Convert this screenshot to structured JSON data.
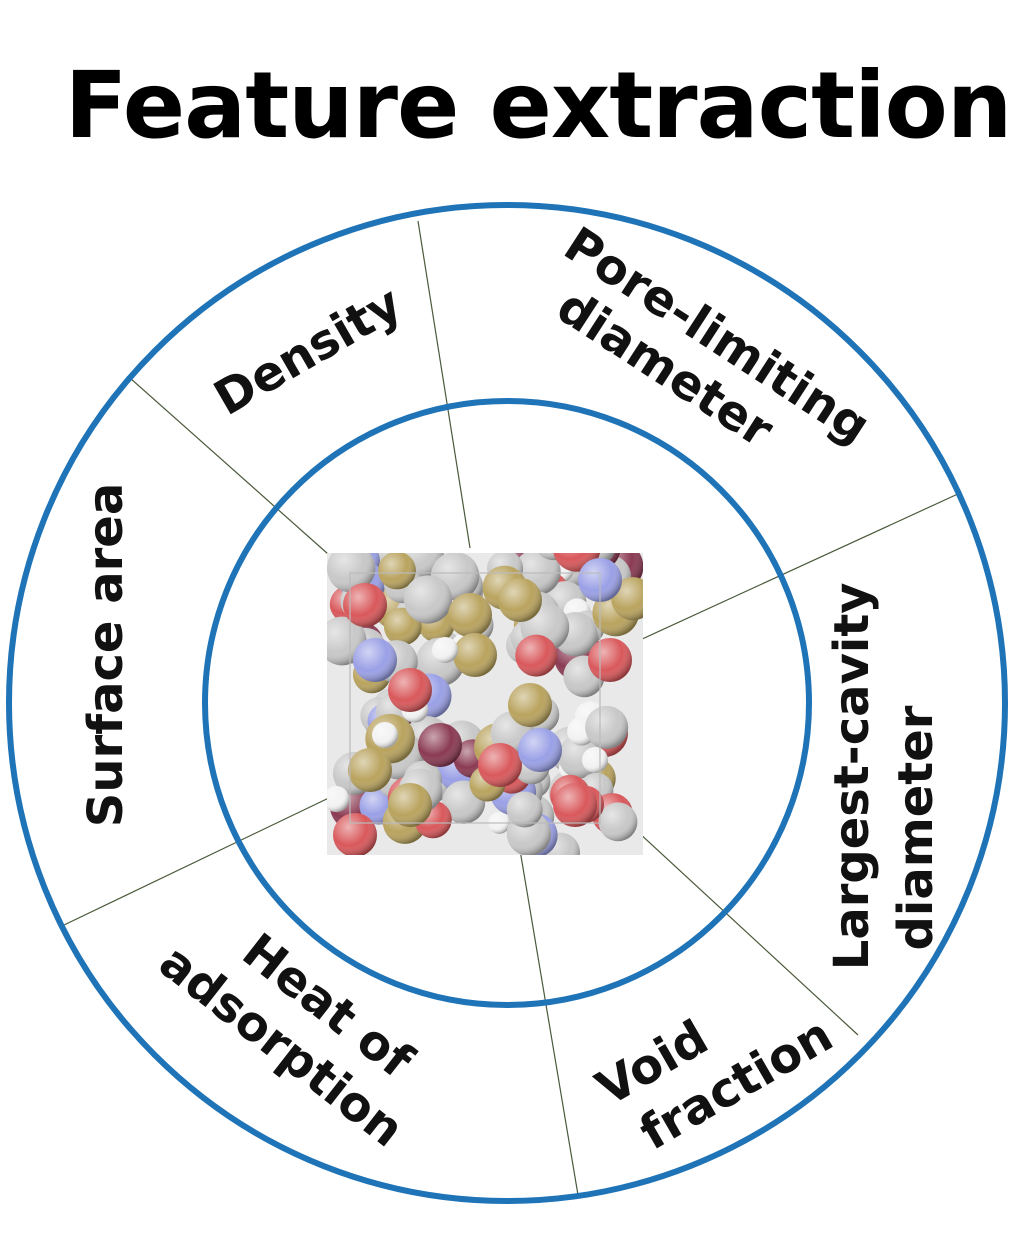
{
  "title": "Feature extraction",
  "ring_color": "#1f73b7",
  "divider_color": "#4a5a3a",
  "segments": [
    {
      "id": "density",
      "lines": [
        "Density"
      ]
    },
    {
      "id": "pore-limiting-diameter",
      "lines": [
        "Pore-limiting",
        "diameter"
      ]
    },
    {
      "id": "largest-cavity-diameter",
      "lines": [
        "Largest-cavity",
        "diameter"
      ]
    },
    {
      "id": "void-fraction",
      "lines": [
        "Void",
        "fraction"
      ]
    },
    {
      "id": "heat-of-adsorption",
      "lines": [
        "Heat of",
        "adsorption"
      ]
    },
    {
      "id": "surface-area",
      "lines": [
        "Surface area"
      ]
    }
  ],
  "center_image": "molecular-framework-structure",
  "atom_colors": {
    "carbon": "#c8c8c8",
    "oxygen": "#d9585b",
    "nitrogen": "#9aa0e6",
    "sulfur": "#b9a35e",
    "hydrogen": "#f2f2f2",
    "metal": "#8a3a52"
  }
}
